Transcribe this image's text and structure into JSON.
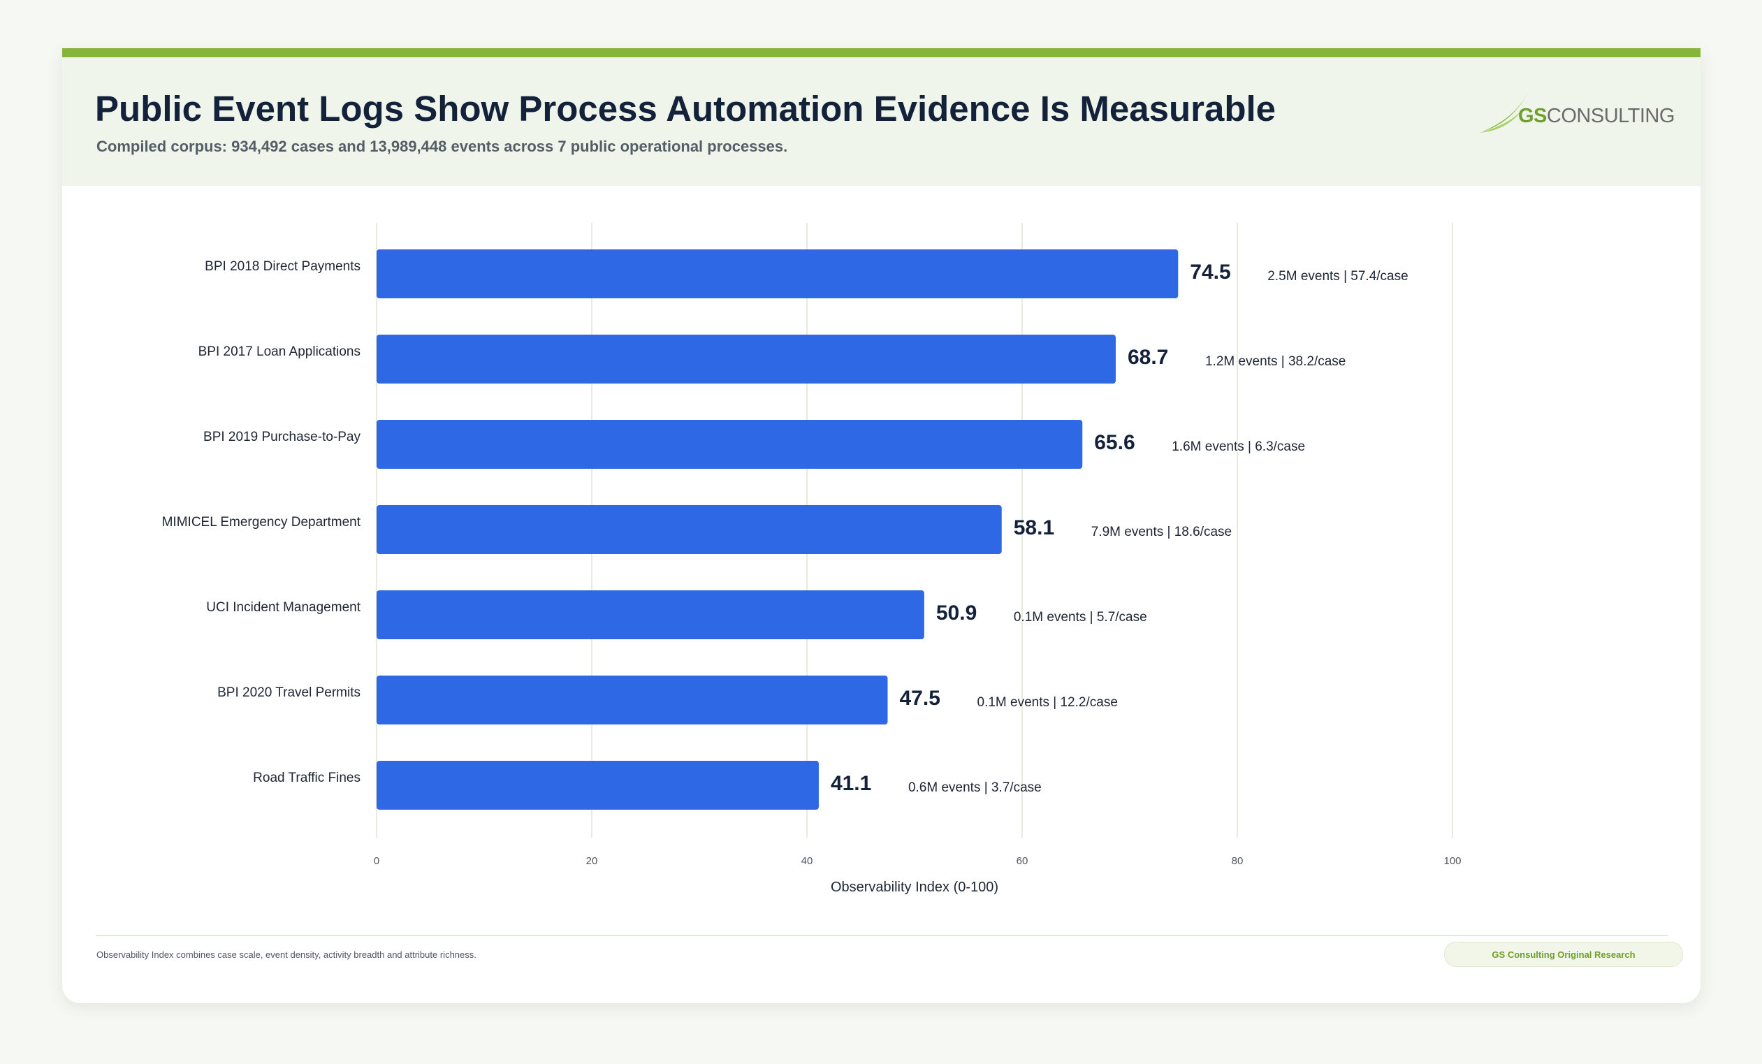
{
  "header": {
    "title": "Public Event Logs Show Process Automation Evidence Is Measurable",
    "subtitle": "Compiled corpus: 934,492 cases and 13,989,448 events across 7 public operational processes."
  },
  "logo": {
    "brand_prefix": "GS",
    "brand_suffix": "CONSULTING",
    "accent_color": "#6f9f2c"
  },
  "footer": {
    "note": "Observability Index combines case scale, event density, activity breadth and attribute richness.",
    "badge": "GS Consulting Original Research"
  },
  "chart_data": {
    "type": "bar",
    "orientation": "horizontal",
    "categories": [
      "BPI 2018 Direct Payments",
      "BPI 2017 Loan Applications",
      "BPI 2019 Purchase-to-Pay",
      "MIMICEL Emergency Department",
      "UCI Incident Management",
      "BPI 2020 Travel Permits",
      "Road Traffic Fines"
    ],
    "values": [
      74.5,
      68.7,
      65.6,
      58.1,
      50.9,
      47.5,
      41.1
    ],
    "value_labels": [
      "74.5",
      "68.7",
      "65.6",
      "58.1",
      "50.9",
      "47.5",
      "41.1"
    ],
    "annotations": [
      "2.5M events | 57.4/case",
      "1.2M events | 38.2/case",
      "1.6M events | 6.3/case",
      "7.9M events | 18.6/case",
      "0.1M events | 5.7/case",
      "0.1M events | 12.2/case",
      "0.6M events | 3.7/case"
    ],
    "xlabel": "Observability Index (0-100)",
    "xlim": [
      0,
      100
    ],
    "xticks": [
      "0",
      "20",
      "40",
      "60",
      "80",
      "100"
    ],
    "grid": true,
    "bar_color": "#2e68e4",
    "grid_color": "#e7ebe0"
  }
}
